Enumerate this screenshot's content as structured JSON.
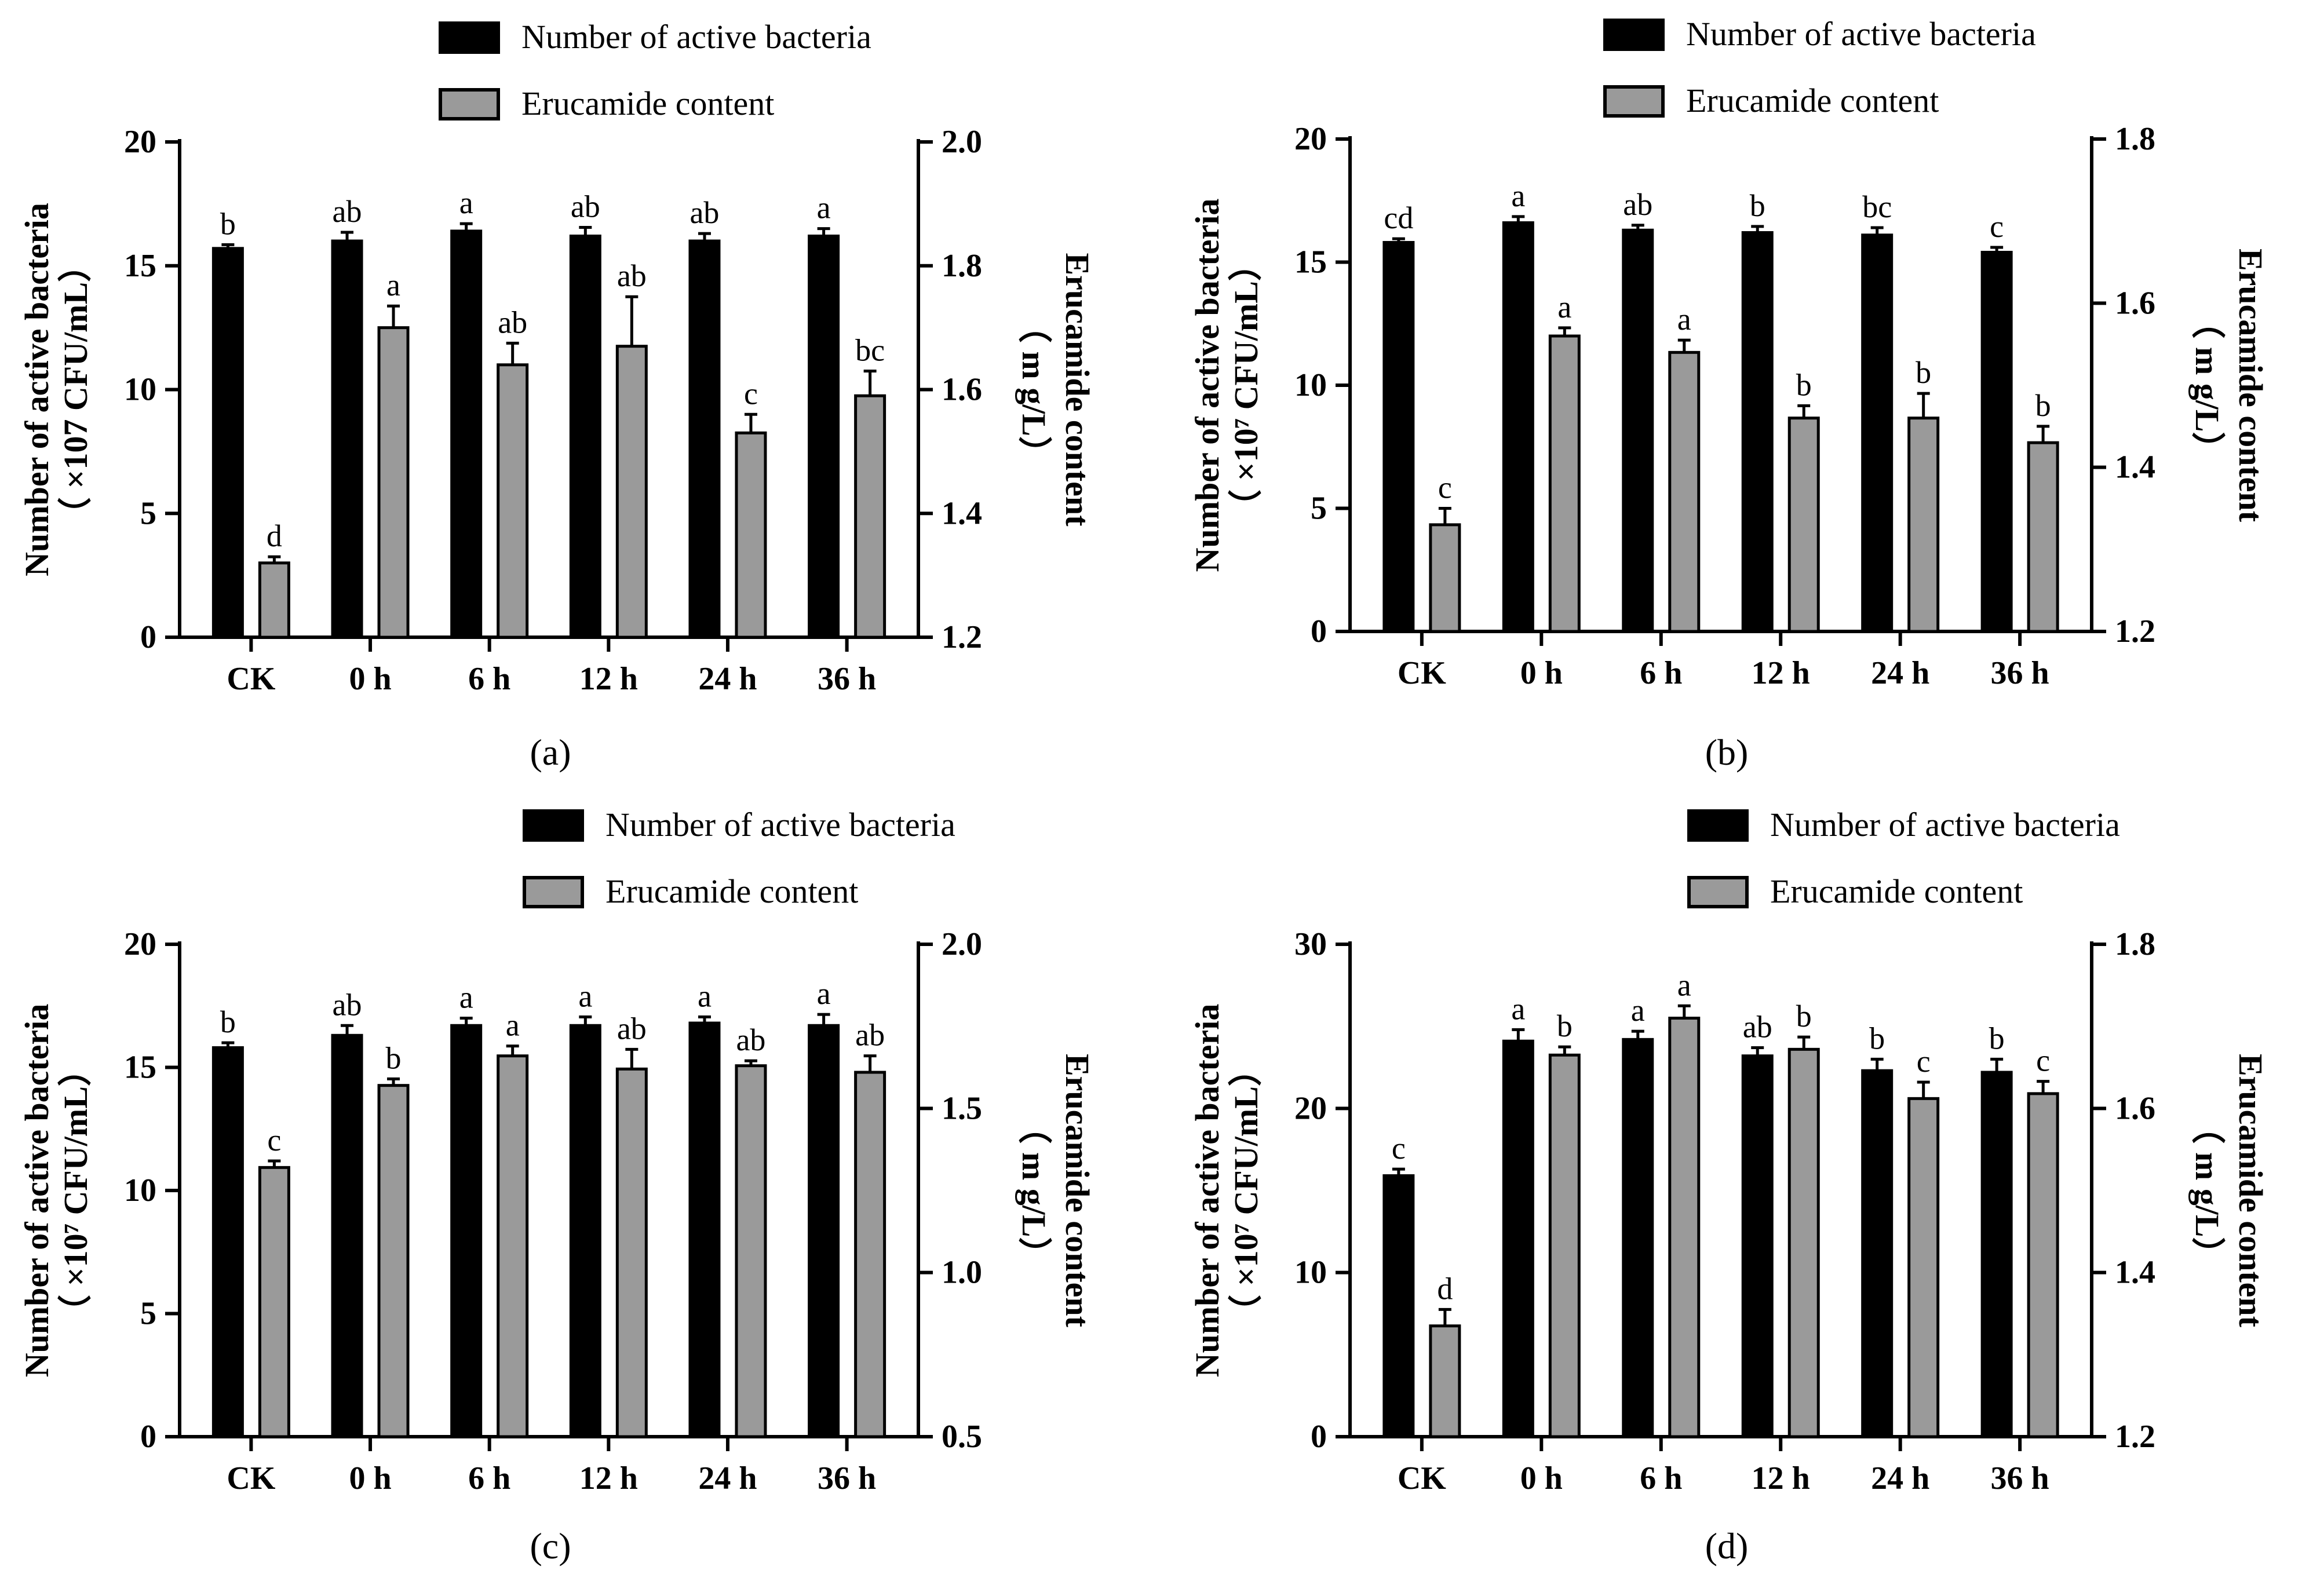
{
  "figure": {
    "legend": {
      "bacteria": "Number of active bacteria",
      "erucamide": "Erucamide content"
    },
    "colors": {
      "bacteria": "#000000",
      "erucamide": "#9a9a9a",
      "axis": "#000000"
    }
  },
  "chart_data": [
    {
      "panel_label": "(a)",
      "type": "bar",
      "categories": [
        "CK",
        "0 h",
        "6 h",
        "12 h",
        "24 h",
        "36 h"
      ],
      "ylabel_left": [
        "Number of active bacteria",
        "（ ×107 CFU/mL）"
      ],
      "ylabel_right": [
        "Erucamide content",
        "（ m g/L）"
      ],
      "ylim_left": [
        0,
        20
      ],
      "yticks_left": [
        "0",
        "5",
        "10",
        "15",
        "20"
      ],
      "ylim_right": [
        1.2,
        2.0
      ],
      "yticks_right": [
        "1.2",
        "1.4",
        "1.6",
        "1.8",
        "2.0"
      ],
      "legend": "top",
      "series": [
        {
          "name": "Number of active bacteria",
          "axis": "left",
          "values": [
            15.7,
            16.0,
            16.4,
            16.2,
            16.0,
            16.2
          ],
          "errors": [
            0.15,
            0.35,
            0.3,
            0.35,
            0.3,
            0.3
          ],
          "labels": [
            "b",
            "ab",
            "a",
            "ab",
            "ab",
            "a"
          ]
        },
        {
          "name": "Erucamide content",
          "axis": "right",
          "values": [
            1.32,
            1.7,
            1.64,
            1.67,
            1.53,
            1.59
          ],
          "errors": [
            0.01,
            0.035,
            0.035,
            0.08,
            0.03,
            0.04
          ],
          "labels": [
            "d",
            "a",
            "ab",
            "ab",
            "c",
            "bc"
          ]
        }
      ]
    },
    {
      "panel_label": "(b)",
      "type": "bar",
      "categories": [
        "CK",
        "0 h",
        "6 h",
        "12 h",
        "24 h",
        "36 h"
      ],
      "ylabel_left": [
        "Number of active bacteria",
        "（ ×10⁷ CFU/mL）"
      ],
      "ylabel_right": [
        "Erucamide content",
        "（ m g/L）"
      ],
      "ylim_left": [
        0,
        20
      ],
      "yticks_left": [
        "0",
        "5",
        "10",
        "15",
        "20"
      ],
      "ylim_right": [
        1.2,
        1.8
      ],
      "yticks_right": [
        "1.2",
        "1.4",
        "1.6",
        "1.8"
      ],
      "legend": "top",
      "series": [
        {
          "name": "Number of active bacteria",
          "axis": "left",
          "values": [
            15.8,
            16.6,
            16.3,
            16.2,
            16.1,
            15.4
          ],
          "errors": [
            0.15,
            0.25,
            0.2,
            0.25,
            0.3,
            0.2
          ],
          "labels": [
            "cd",
            "a",
            "ab",
            "b",
            "bc",
            "c"
          ]
        },
        {
          "name": "Erucamide content",
          "axis": "right",
          "values": [
            1.33,
            1.56,
            1.54,
            1.46,
            1.46,
            1.43
          ],
          "errors": [
            0.02,
            0.01,
            0.015,
            0.015,
            0.03,
            0.02
          ],
          "labels": [
            "c",
            "a",
            "a",
            "b",
            "b",
            "b"
          ]
        }
      ]
    },
    {
      "panel_label": "(c)",
      "type": "bar",
      "categories": [
        "CK",
        "0 h",
        "6 h",
        "12 h",
        "24 h",
        "36 h"
      ],
      "ylabel_left": [
        "Number of active bacteria",
        "（ ×10⁷ CFU/mL）"
      ],
      "ylabel_right": [
        "Erucamide content",
        "（ m g/L）"
      ],
      "ylim_left": [
        0,
        20
      ],
      "yticks_left": [
        "0",
        "5",
        "10",
        "15",
        "20"
      ],
      "ylim_right": [
        0.5,
        2.0
      ],
      "yticks_right": [
        "0.5",
        "1.0",
        "1.5",
        "2.0"
      ],
      "legend": "top",
      "series": [
        {
          "name": "Number of active bacteria",
          "axis": "left",
          "values": [
            15.8,
            16.3,
            16.7,
            16.7,
            16.8,
            16.7
          ],
          "errors": [
            0.2,
            0.4,
            0.3,
            0.35,
            0.25,
            0.45
          ],
          "labels": [
            "b",
            "ab",
            "a",
            "a",
            "a",
            "a"
          ]
        },
        {
          "name": "Erucamide content",
          "axis": "right",
          "values": [
            1.32,
            1.57,
            1.66,
            1.62,
            1.63,
            1.61
          ],
          "errors": [
            0.02,
            0.02,
            0.03,
            0.06,
            0.015,
            0.05
          ],
          "labels": [
            "c",
            "b",
            "a",
            "ab",
            "ab",
            "ab"
          ]
        }
      ]
    },
    {
      "panel_label": "(d)",
      "type": "bar",
      "categories": [
        "CK",
        "0 h",
        "6 h",
        "12 h",
        "24 h",
        "36 h"
      ],
      "ylabel_left": [
        "Number of active bacteria",
        "（ ×10⁷ CFU/mL）"
      ],
      "ylabel_right": [
        "Erucamide content",
        "（ m g/L）"
      ],
      "ylim_left": [
        0,
        30
      ],
      "yticks_left": [
        "0",
        "10",
        "20",
        "30"
      ],
      "ylim_right": [
        1.2,
        1.8
      ],
      "yticks_right": [
        "1.2",
        "1.4",
        "1.6",
        "1.8"
      ],
      "legend": "top",
      "series": [
        {
          "name": "Number of active bacteria",
          "axis": "left",
          "values": [
            15.9,
            24.1,
            24.2,
            23.2,
            22.3,
            22.2
          ],
          "errors": [
            0.4,
            0.7,
            0.5,
            0.5,
            0.7,
            0.8
          ],
          "labels": [
            "c",
            "a",
            "a",
            "ab",
            "b",
            "b"
          ]
        },
        {
          "name": "Erucamide content",
          "axis": "right",
          "values": [
            1.335,
            1.665,
            1.71,
            1.672,
            1.612,
            1.618
          ],
          "errors": [
            0.02,
            0.01,
            0.015,
            0.015,
            0.02,
            0.015
          ],
          "labels": [
            "d",
            "b",
            "a",
            "b",
            "c",
            "c"
          ]
        }
      ]
    }
  ]
}
